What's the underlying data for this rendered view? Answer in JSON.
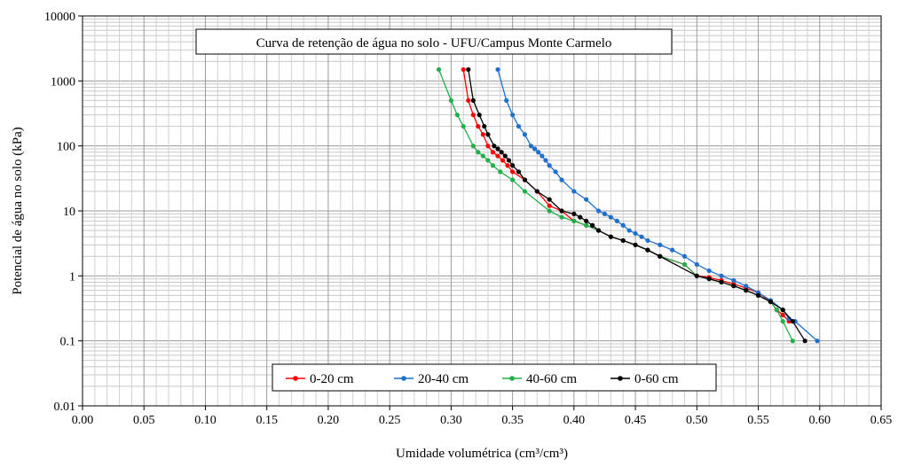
{
  "chart_data": {
    "type": "scatter",
    "title": "Curva de retenção de água no solo - UFU/Campus Monte Carmelo",
    "xlabel": "Umidade volumétrica (cm³/cm³)",
    "ylabel": "Potencial de água no solo (kPa)",
    "xlim": [
      0,
      0.65
    ],
    "ylim": [
      0.01,
      10000
    ],
    "yscale": "log",
    "grid": true,
    "legend_position": "bottom-center",
    "x_ticks": [
      "0.00",
      "0.05",
      "0.10",
      "0.15",
      "0.20",
      "0.25",
      "0.30",
      "0.35",
      "0.40",
      "0.45",
      "0.50",
      "0.55",
      "0.60",
      "0.65"
    ],
    "y_ticks": [
      "0.01",
      "0.1",
      "1",
      "10",
      "100",
      "1000",
      "10000"
    ],
    "series": [
      {
        "name": "0-20 cm",
        "color": "#ff0000",
        "points": [
          [
            0.31,
            1500
          ],
          [
            0.314,
            500
          ],
          [
            0.318,
            300
          ],
          [
            0.322,
            200
          ],
          [
            0.326,
            150
          ],
          [
            0.33,
            100
          ],
          [
            0.334,
            80
          ],
          [
            0.338,
            70
          ],
          [
            0.342,
            60
          ],
          [
            0.346,
            50
          ],
          [
            0.35,
            40
          ],
          [
            0.36,
            30
          ],
          [
            0.37,
            20
          ],
          [
            0.38,
            12
          ],
          [
            0.39,
            10
          ],
          [
            0.4,
            7
          ],
          [
            0.41,
            6
          ],
          [
            0.42,
            5
          ],
          [
            0.43,
            4
          ],
          [
            0.44,
            3.5
          ],
          [
            0.45,
            3
          ],
          [
            0.46,
            2.5
          ],
          [
            0.47,
            2
          ],
          [
            0.49,
            1.5
          ],
          [
            0.5,
            1
          ],
          [
            0.51,
            0.95
          ],
          [
            0.52,
            0.85
          ],
          [
            0.53,
            0.75
          ],
          [
            0.54,
            0.65
          ],
          [
            0.55,
            0.55
          ],
          [
            0.56,
            0.4
          ],
          [
            0.565,
            0.3
          ],
          [
            0.57,
            0.25
          ],
          [
            0.575,
            0.2
          ]
        ]
      },
      {
        "name": "20-40 cm",
        "color": "#1f6fcc",
        "points": [
          [
            0.338,
            1500
          ],
          [
            0.345,
            500
          ],
          [
            0.35,
            300
          ],
          [
            0.355,
            200
          ],
          [
            0.36,
            150
          ],
          [
            0.365,
            100
          ],
          [
            0.368,
            90
          ],
          [
            0.371,
            80
          ],
          [
            0.374,
            70
          ],
          [
            0.377,
            60
          ],
          [
            0.38,
            50
          ],
          [
            0.385,
            40
          ],
          [
            0.39,
            30
          ],
          [
            0.4,
            20
          ],
          [
            0.41,
            15
          ],
          [
            0.42,
            10
          ],
          [
            0.425,
            9
          ],
          [
            0.43,
            8
          ],
          [
            0.435,
            7
          ],
          [
            0.44,
            6
          ],
          [
            0.445,
            5
          ],
          [
            0.45,
            4.5
          ],
          [
            0.455,
            4
          ],
          [
            0.46,
            3.5
          ],
          [
            0.47,
            3
          ],
          [
            0.48,
            2.5
          ],
          [
            0.49,
            2
          ],
          [
            0.5,
            1.5
          ],
          [
            0.51,
            1.2
          ],
          [
            0.52,
            1
          ],
          [
            0.53,
            0.85
          ],
          [
            0.54,
            0.7
          ],
          [
            0.55,
            0.55
          ],
          [
            0.56,
            0.42
          ],
          [
            0.57,
            0.3
          ],
          [
            0.575,
            0.22
          ],
          [
            0.58,
            0.2
          ],
          [
            0.598,
            0.1
          ]
        ]
      },
      {
        "name": "40-60 cm",
        "color": "#22b04a",
        "points": [
          [
            0.29,
            1500
          ],
          [
            0.3,
            500
          ],
          [
            0.305,
            300
          ],
          [
            0.31,
            200
          ],
          [
            0.318,
            100
          ],
          [
            0.322,
            80
          ],
          [
            0.326,
            70
          ],
          [
            0.33,
            60
          ],
          [
            0.334,
            50
          ],
          [
            0.34,
            40
          ],
          [
            0.35,
            30
          ],
          [
            0.36,
            20
          ],
          [
            0.38,
            10
          ],
          [
            0.39,
            8
          ],
          [
            0.4,
            7
          ],
          [
            0.41,
            6
          ],
          [
            0.42,
            5
          ],
          [
            0.43,
            4
          ],
          [
            0.44,
            3.5
          ],
          [
            0.45,
            3
          ],
          [
            0.46,
            2.5
          ],
          [
            0.47,
            2
          ],
          [
            0.49,
            1.5
          ],
          [
            0.5,
            1
          ],
          [
            0.51,
            0.9
          ],
          [
            0.52,
            0.8
          ],
          [
            0.53,
            0.7
          ],
          [
            0.54,
            0.6
          ],
          [
            0.55,
            0.5
          ],
          [
            0.56,
            0.4
          ],
          [
            0.565,
            0.3
          ],
          [
            0.57,
            0.2
          ],
          [
            0.578,
            0.1
          ]
        ]
      },
      {
        "name": "0-60 cm",
        "color": "#000000",
        "points": [
          [
            0.314,
            1500
          ],
          [
            0.318,
            500
          ],
          [
            0.323,
            300
          ],
          [
            0.327,
            200
          ],
          [
            0.33,
            150
          ],
          [
            0.335,
            100
          ],
          [
            0.338,
            90
          ],
          [
            0.341,
            80
          ],
          [
            0.344,
            70
          ],
          [
            0.347,
            60
          ],
          [
            0.35,
            50
          ],
          [
            0.355,
            40
          ],
          [
            0.36,
            30
          ],
          [
            0.37,
            20
          ],
          [
            0.38,
            15
          ],
          [
            0.39,
            10
          ],
          [
            0.4,
            9
          ],
          [
            0.405,
            8
          ],
          [
            0.41,
            7
          ],
          [
            0.415,
            6
          ],
          [
            0.42,
            5
          ],
          [
            0.43,
            4
          ],
          [
            0.44,
            3.5
          ],
          [
            0.45,
            3
          ],
          [
            0.46,
            2.5
          ],
          [
            0.47,
            2
          ],
          [
            0.5,
            1
          ],
          [
            0.51,
            0.9
          ],
          [
            0.52,
            0.8
          ],
          [
            0.53,
            0.7
          ],
          [
            0.54,
            0.6
          ],
          [
            0.55,
            0.5
          ],
          [
            0.56,
            0.4
          ],
          [
            0.57,
            0.3
          ],
          [
            0.578,
            0.2
          ],
          [
            0.588,
            0.1
          ]
        ]
      }
    ]
  }
}
